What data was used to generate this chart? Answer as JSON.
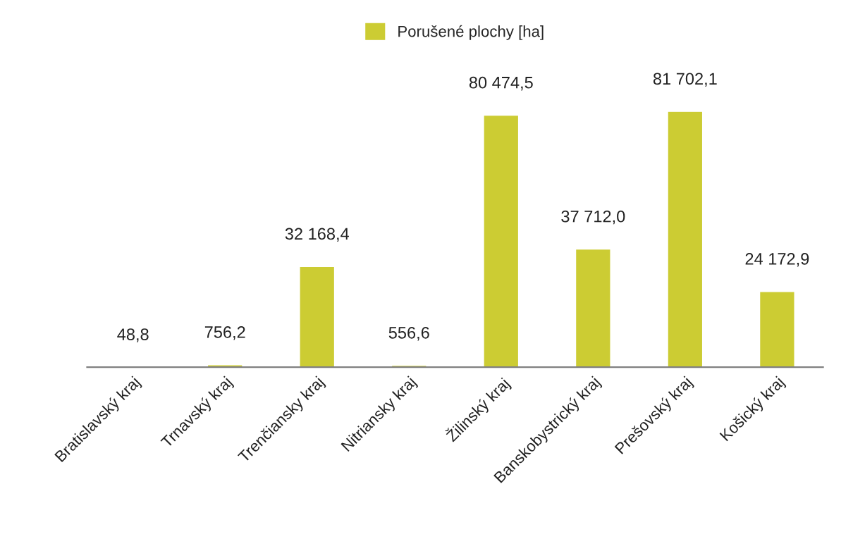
{
  "chart_data": {
    "type": "bar",
    "categories": [
      "Bratislavský kraj",
      "Trnavský kraj",
      "Trenčiansky kraj",
      "Nitriansky kraj",
      "Žilinský kraj",
      "Banskobystrický kraj",
      "Prešovský kraj",
      "Košický kraj"
    ],
    "series": [
      {
        "name": "Porušené plochy [ha]",
        "color": "#cccc33",
        "values": [
          48.8,
          756.2,
          32168.4,
          556.6,
          80474.5,
          37712.0,
          81702.1,
          24172.9
        ],
        "value_labels": [
          "48,8",
          "756,2",
          "32 168,4",
          "556,6",
          "80 474,5",
          "37 712,0",
          "81 702,1",
          "24 172,9"
        ]
      }
    ],
    "legend": "top",
    "grid": false,
    "tick_labels": "x"
  }
}
